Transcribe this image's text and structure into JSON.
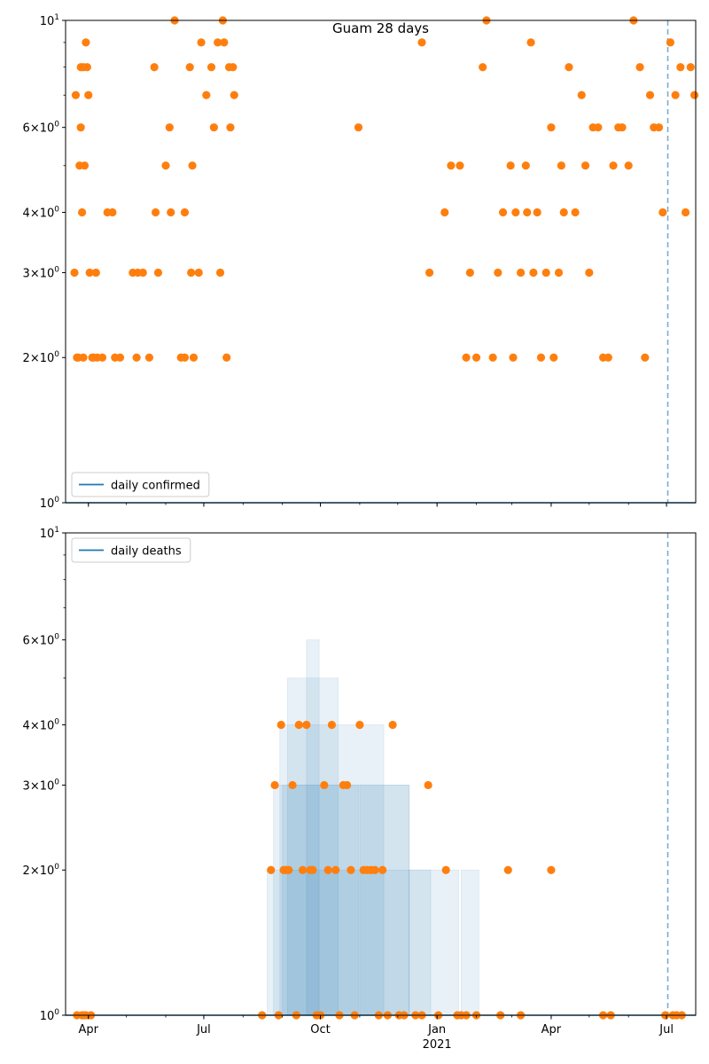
{
  "chart_data": [
    {
      "type": "scatter",
      "title": "Guam 28 days",
      "yscale": "log",
      "ylim": [
        1,
        10
      ],
      "xlim": [
        "2020-03-14",
        "2021-07-24"
      ],
      "y_ticks": [
        1,
        2,
        3,
        4,
        6,
        10
      ],
      "y_tick_labels": [
        "10^0",
        "2×10^0",
        "3×10^0",
        "4×10^0",
        "6×10^0",
        "10^1"
      ],
      "x_ticks": [
        "2020-04-01",
        "2020-07-01",
        "2020-10-01",
        "2021-01-01",
        "2021-04-01",
        "2021-07-01"
      ],
      "x_tick_labels": [
        "Apr",
        "Jul",
        "Oct",
        "Jan",
        "Apr",
        "Jul"
      ],
      "x_year_label": "2021",
      "legend": {
        "label": "daily confirmed",
        "position": "lower-left"
      },
      "reference_line": {
        "x": "2021-07-02",
        "style": "dashed"
      },
      "line_series": {
        "name": "daily confirmed",
        "value": 1
      },
      "points": {
        "color": "#ff7f0e",
        "x": [
          "2020-03-21",
          "2020-03-22",
          "2020-03-23",
          "2020-03-24",
          "2020-03-25",
          "2020-03-26",
          "2020-03-26",
          "2020-03-27",
          "2020-03-28",
          "2020-03-28",
          "2020-03-29",
          "2020-03-30",
          "2020-03-31",
          "2020-04-01",
          "2020-04-02",
          "2020-04-04",
          "2020-04-05",
          "2020-04-07",
          "2020-04-08",
          "2020-04-12",
          "2020-04-16",
          "2020-04-20",
          "2020-04-22",
          "2020-04-26",
          "2020-05-06",
          "2020-05-09",
          "2020-05-10",
          "2020-05-14",
          "2020-05-19",
          "2020-05-23",
          "2020-05-24",
          "2020-05-26",
          "2020-06-01",
          "2020-06-04",
          "2020-06-05",
          "2020-06-08",
          "2020-06-13",
          "2020-06-16",
          "2020-06-16",
          "2020-06-20",
          "2020-06-21",
          "2020-06-22",
          "2020-06-23",
          "2020-06-27",
          "2020-06-29",
          "2020-07-03",
          "2020-07-07",
          "2020-07-09",
          "2020-07-12",
          "2020-07-14",
          "2020-07-16",
          "2020-07-17",
          "2020-07-19",
          "2020-07-21",
          "2020-07-22",
          "2020-07-24",
          "2020-07-25",
          "2020-10-31",
          "2020-12-20",
          "2020-12-26",
          "2021-01-07",
          "2021-01-12",
          "2021-01-19",
          "2021-01-24",
          "2021-01-27",
          "2021-02-01",
          "2021-02-06",
          "2021-02-09",
          "2021-02-14",
          "2021-02-18",
          "2021-02-22",
          "2021-02-28",
          "2021-03-02",
          "2021-03-04",
          "2021-03-08",
          "2021-03-12",
          "2021-03-13",
          "2021-03-16",
          "2021-03-18",
          "2021-03-21",
          "2021-03-24",
          "2021-03-28",
          "2021-04-01",
          "2021-04-03",
          "2021-04-07",
          "2021-04-09",
          "2021-04-11",
          "2021-04-15",
          "2021-04-20",
          "2021-04-25",
          "2021-04-28",
          "2021-05-01",
          "2021-05-04",
          "2021-05-08",
          "2021-05-12",
          "2021-05-16",
          "2021-05-20",
          "2021-05-24",
          "2021-05-27",
          "2021-06-01",
          "2021-06-05",
          "2021-06-10",
          "2021-06-14",
          "2021-06-18",
          "2021-06-21",
          "2021-06-25",
          "2021-06-28",
          "2021-07-04",
          "2021-07-08",
          "2021-07-12",
          "2021-07-16",
          "2021-07-20",
          "2021-07-23"
        ],
        "y": [
          3,
          7,
          2,
          2,
          5,
          8,
          6,
          4,
          8,
          2,
          5,
          9,
          8,
          7,
          3,
          2,
          2,
          3,
          2,
          2,
          4,
          4,
          2,
          2,
          3,
          2,
          3,
          3,
          2,
          8,
          4,
          3,
          5,
          6,
          4,
          10,
          2,
          2,
          4,
          8,
          3,
          5,
          2,
          3,
          9,
          7,
          8,
          6,
          9,
          3,
          10,
          9,
          2,
          8,
          6,
          8,
          7,
          6,
          9,
          3,
          4,
          5,
          5,
          2,
          3,
          2,
          8,
          10,
          2,
          3,
          4,
          5,
          2,
          4,
          3,
          5,
          4,
          9,
          3,
          4,
          2,
          3,
          6,
          2,
          3,
          5,
          4,
          8,
          4,
          7,
          5,
          3,
          6,
          6,
          2,
          2,
          5,
          6,
          6,
          5,
          10,
          8,
          2,
          7,
          6,
          6,
          4,
          9,
          7,
          8,
          4,
          8,
          7
        ]
      }
    },
    {
      "type": "scatter",
      "yscale": "log",
      "ylim": [
        1,
        10
      ],
      "xlim": [
        "2020-03-14",
        "2021-07-24"
      ],
      "y_ticks": [
        1,
        2,
        3,
        4,
        6,
        10
      ],
      "y_tick_labels": [
        "10^0",
        "2×10^0",
        "3×10^0",
        "4×10^0",
        "6×10^0",
        "10^1"
      ],
      "x_ticks": [
        "2020-04-01",
        "2020-07-01",
        "2020-10-01",
        "2021-01-01",
        "2021-04-01",
        "2021-07-01"
      ],
      "x_tick_labels": [
        "Apr",
        "Jul",
        "Oct",
        "Jan",
        "Apr",
        "Jul"
      ],
      "x_year_label": "2021",
      "legend": {
        "label": "daily deaths",
        "position": "upper-left"
      },
      "reference_line": {
        "x": "2021-07-02",
        "style": "dashed"
      },
      "line_series": {
        "name": "daily deaths",
        "value": 1
      },
      "bands": {
        "color": "#1f77b4",
        "items": [
          {
            "x0": "2020-08-20",
            "x1": "2020-12-27",
            "y": 2
          },
          {
            "x0": "2020-08-25",
            "x1": "2020-12-10",
            "y": 3
          },
          {
            "x0": "2020-08-30",
            "x1": "2020-11-20",
            "y": 4
          },
          {
            "x0": "2020-09-05",
            "x1": "2020-10-15",
            "y": 5
          },
          {
            "x0": "2020-09-20",
            "x1": "2020-09-30",
            "y": 6
          },
          {
            "x0": "2020-09-01",
            "x1": "2020-10-31",
            "y": 3
          },
          {
            "x0": "2020-11-01",
            "x1": "2020-12-10",
            "y": 3
          },
          {
            "x0": "2020-12-10",
            "x1": "2021-01-18",
            "y": 2
          },
          {
            "x0": "2021-01-20",
            "x1": "2021-02-03",
            "y": 2
          }
        ]
      },
      "points": {
        "color": "#ff7f0e",
        "x": [
          "2020-03-23",
          "2020-03-27",
          "2020-03-28",
          "2020-03-30",
          "2020-04-03",
          "2020-08-16",
          "2020-08-23",
          "2020-08-26",
          "2020-08-29",
          "2020-08-31",
          "2020-09-02",
          "2020-09-04",
          "2020-09-06",
          "2020-09-09",
          "2020-09-12",
          "2020-09-14",
          "2020-09-17",
          "2020-09-20",
          "2020-09-23",
          "2020-09-25",
          "2020-09-28",
          "2020-10-01",
          "2020-10-04",
          "2020-10-07",
          "2020-10-10",
          "2020-10-13",
          "2020-10-16",
          "2020-10-19",
          "2020-10-22",
          "2020-10-25",
          "2020-10-28",
          "2020-11-01",
          "2020-11-04",
          "2020-11-07",
          "2020-11-10",
          "2020-11-13",
          "2020-11-16",
          "2020-11-19",
          "2020-11-23",
          "2020-11-27",
          "2020-12-02",
          "2020-12-06",
          "2020-12-15",
          "2020-12-20",
          "2020-12-25",
          "2021-01-02",
          "2021-01-08",
          "2021-01-17",
          "2021-01-20",
          "2021-01-24",
          "2021-02-01",
          "2021-02-20",
          "2021-02-26",
          "2021-03-08",
          "2021-04-01",
          "2021-05-12",
          "2021-05-18",
          "2021-06-30",
          "2021-07-06",
          "2021-07-09",
          "2021-07-13"
        ],
        "y": [
          1,
          1,
          1,
          1,
          1,
          1,
          2,
          3,
          1,
          4,
          2,
          2,
          2,
          3,
          1,
          4,
          2,
          4,
          2,
          2,
          1,
          1,
          3,
          2,
          4,
          2,
          1,
          3,
          3,
          2,
          1,
          4,
          2,
          2,
          2,
          2,
          1,
          2,
          1,
          4,
          1,
          1,
          1,
          1,
          3,
          1,
          2,
          1,
          1,
          1,
          1,
          1,
          2,
          1,
          2,
          1,
          1,
          1,
          1,
          1,
          1
        ]
      }
    }
  ]
}
